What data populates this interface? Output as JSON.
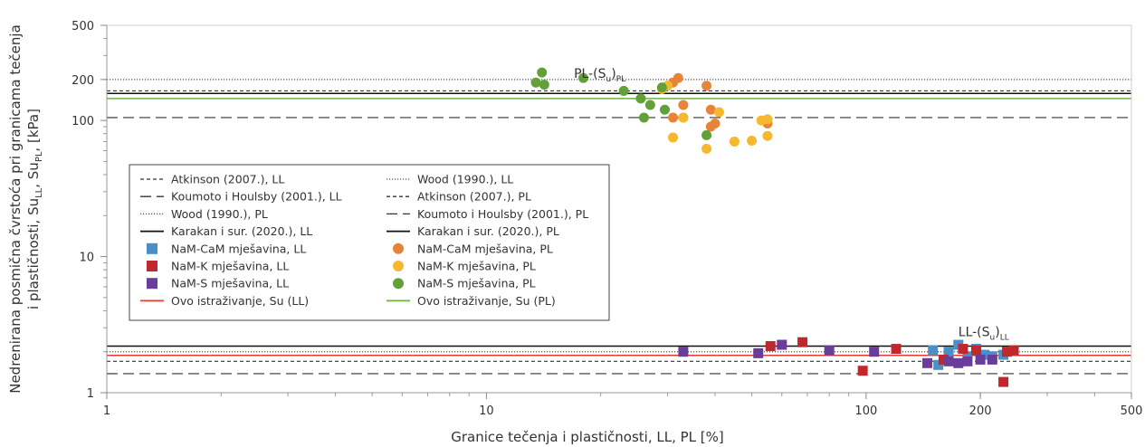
{
  "chart_data": {
    "type": "scatter",
    "xscale": "log",
    "yscale": "log",
    "xlim": [
      1,
      500
    ],
    "ylim": [
      1,
      500
    ],
    "xlabel": "Granice tečenja i plastičnosti, LL, PL [%]",
    "ylabel_line1": "Nedrenirana posmična čvrstoća pri granicama tečenja",
    "ylabel_line2": "i plastičnosti, Su",
    "ylabel_sub1": "LL",
    "ylabel_mid": ", Su",
    "ylabel_sub2": "PL",
    "ylabel_end": ", [kPa]",
    "xticks": [
      {
        "value": 1,
        "label": "1"
      },
      {
        "value": 10,
        "label": "10"
      },
      {
        "value": 100,
        "label": "100"
      },
      {
        "value": 200,
        "label": "200"
      },
      {
        "value": 500,
        "label": "500"
      }
    ],
    "yticks": [
      {
        "value": 1,
        "label": "1"
      },
      {
        "value": 10,
        "label": "10"
      },
      {
        "value": 100,
        "label": "100"
      },
      {
        "value": 200,
        "label": "200"
      },
      {
        "value": 500,
        "label": "500"
      }
    ],
    "annotations": [
      {
        "text": "PL-(S",
        "sub1": "u",
        "mid": ")",
        "sub2": "PL",
        "x": 17,
        "y": 205
      },
      {
        "text": "LL-(S",
        "sub1": "u",
        "mid": ")",
        "sub2": "LL",
        "x": 175,
        "y": 2.6
      }
    ],
    "reference_lines": [
      {
        "name": "Atkinson (2007.), LL",
        "y": 1.7,
        "style": "dashed",
        "color": "#333333"
      },
      {
        "name": "Wood (1990.), LL",
        "y": 2.0,
        "style": "dotted",
        "color": "#555555"
      },
      {
        "name": "Koumoto i Houlsby (2001.), LL",
        "y": 1.38,
        "style": "longdash",
        "color": "#333333"
      },
      {
        "name": "Atkinson (2007.), PL",
        "y": 165,
        "style": "dashed",
        "color": "#333333"
      },
      {
        "name": "Wood (1990.), PL",
        "y": 200,
        "style": "dotted",
        "color": "#555555"
      },
      {
        "name": "Koumoto i Houlsby (2001.), PL",
        "y": 105,
        "style": "longdash",
        "color": "#333333"
      },
      {
        "name": "Karakan i sur. (2020.), LL",
        "y": 2.2,
        "style": "solid",
        "color": "#111111"
      },
      {
        "name": "Karakan i sur. (2020.), PL",
        "y": 158,
        "style": "solid",
        "color": "#111111"
      },
      {
        "name": "Ovo istraživanje, Su (LL)",
        "y": 1.88,
        "style": "solid",
        "color": "#e03c31"
      },
      {
        "name": "Ovo istraživanje, Su (PL)",
        "y": 145,
        "style": "solid",
        "color": "#6cb33f"
      }
    ],
    "series": [
      {
        "name": "NaM-CaM mješavina, LL",
        "marker": "square",
        "color": "#4a90c8",
        "points": [
          [
            150,
            2.05
          ],
          [
            155,
            1.6
          ],
          [
            165,
            2.0
          ],
          [
            175,
            2.25
          ],
          [
            185,
            1.85
          ],
          [
            195,
            2.1
          ],
          [
            205,
            1.9
          ],
          [
            215,
            1.85
          ],
          [
            230,
            1.9
          ]
        ]
      },
      {
        "name": "NaM-K mješavina, LL",
        "marker": "square",
        "color": "#c0282d",
        "points": [
          [
            56,
            2.2
          ],
          [
            68,
            2.35
          ],
          [
            98,
            1.45
          ],
          [
            120,
            2.1
          ],
          [
            160,
            1.75
          ],
          [
            180,
            2.1
          ],
          [
            195,
            2.05
          ],
          [
            230,
            1.2
          ],
          [
            235,
            2.0
          ],
          [
            245,
            2.05
          ]
        ]
      },
      {
        "name": "NaM-S mješavina, LL",
        "marker": "square",
        "color": "#6a3d9a",
        "points": [
          [
            33,
            2.0
          ],
          [
            52,
            1.95
          ],
          [
            60,
            2.25
          ],
          [
            80,
            2.05
          ],
          [
            105,
            2.0
          ],
          [
            145,
            1.65
          ],
          [
            165,
            1.7
          ],
          [
            175,
            1.65
          ],
          [
            185,
            1.7
          ],
          [
            200,
            1.75
          ],
          [
            215,
            1.75
          ]
        ]
      },
      {
        "name": "NaM-CaM mješavina, PL",
        "marker": "circle",
        "color": "#e8833a",
        "points": [
          [
            31,
            190
          ],
          [
            32,
            205
          ],
          [
            31,
            105
          ],
          [
            33,
            130
          ],
          [
            33,
            105
          ],
          [
            38,
            180
          ],
          [
            39,
            120
          ],
          [
            40,
            95
          ],
          [
            39,
            90
          ],
          [
            55,
            95
          ]
        ]
      },
      {
        "name": "NaM-K mješavina, PL",
        "marker": "circle",
        "color": "#f5b82e",
        "points": [
          [
            29,
            170
          ],
          [
            30,
            180
          ],
          [
            31,
            75
          ],
          [
            33,
            105
          ],
          [
            38,
            62
          ],
          [
            41,
            115
          ],
          [
            45,
            70
          ],
          [
            50,
            71
          ],
          [
            53,
            100
          ],
          [
            55,
            102
          ],
          [
            55,
            77
          ]
        ]
      },
      {
        "name": "NaM-S mješavina, PL",
        "marker": "circle",
        "color": "#62a13a",
        "points": [
          [
            13.5,
            190
          ],
          [
            14,
            225
          ],
          [
            14.2,
            183
          ],
          [
            18,
            205
          ],
          [
            23,
            165
          ],
          [
            25.5,
            145
          ],
          [
            26,
            105
          ],
          [
            27,
            130
          ],
          [
            29,
            175
          ],
          [
            29.5,
            120
          ],
          [
            38,
            78
          ]
        ]
      }
    ],
    "legend": {
      "placement": "center-left",
      "entries": [
        "Atkinson (2007.), LL",
        "Wood (1990.), LL",
        "Koumoto i Houlsby (2001.), LL",
        "Atkinson (2007.), PL",
        "Wood (1990.), PL",
        "Koumoto i Houlsby (2001.), PL",
        "Karakan i sur. (2020.), LL",
        "Karakan i sur. (2020.), PL",
        "NaM-CaM mješavina, LL",
        "NaM-CaM mješavina, PL",
        "NaM-K mješavina, LL",
        "NaM-K mješavina, PL",
        "NaM-S mješavina, LL",
        "NaM-S mješavina, PL",
        "Ovo istraživanje, Su (LL)",
        "Ovo istraživanje, Su (PL)"
      ]
    }
  }
}
